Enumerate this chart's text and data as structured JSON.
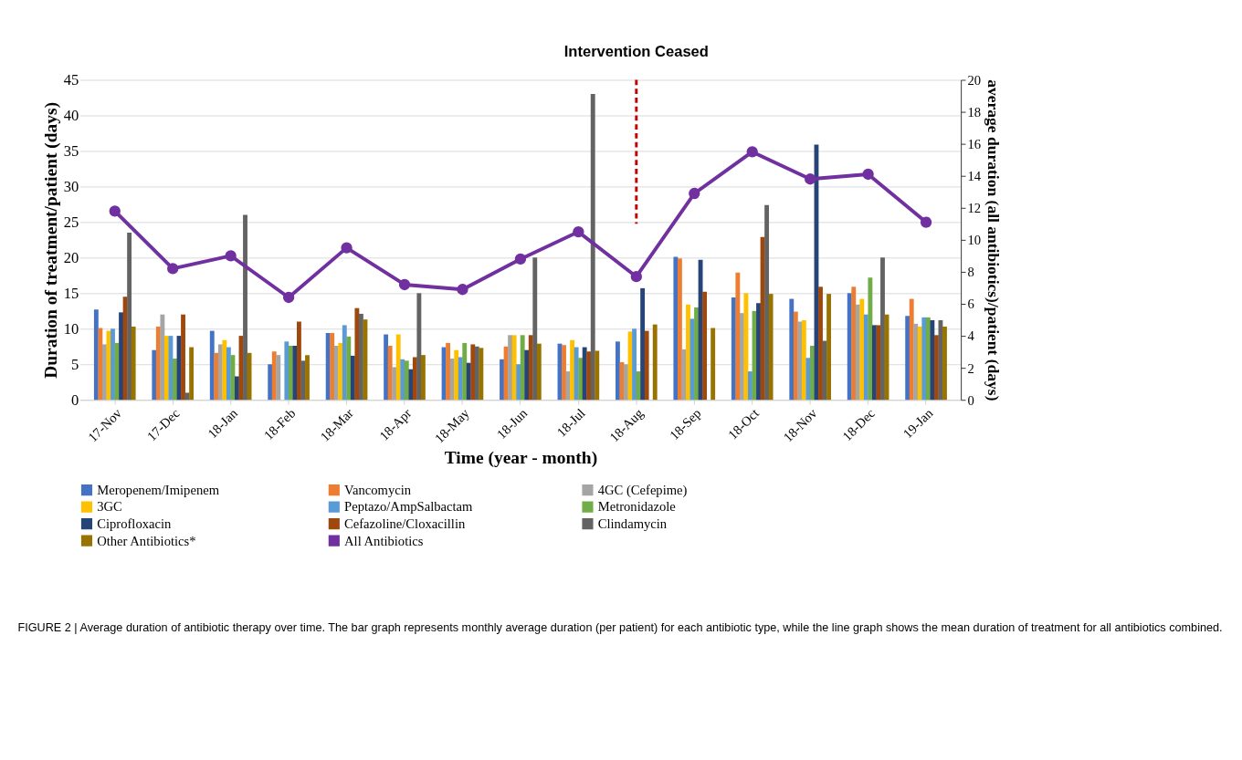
{
  "chart_data": {
    "type": "bar",
    "xlabel": "Time (year - month)",
    "ylabel": "Duration of treatment/patient (days)",
    "y2label": "average duration (all antibiotics)/patient (days)",
    "categories": [
      "17-Nov",
      "17-Dec",
      "18-Jan",
      "18-Feb",
      "18-Mar",
      "18-Apr",
      "18-May",
      "18-Jun",
      "18-Jul",
      "18-Aug",
      "18-Sep",
      "18-Oct",
      "18-Nov",
      "18-Dec",
      "19-Jan"
    ],
    "series": [
      {
        "name": "Meropenem/Imipenem",
        "color": "#4472c4",
        "values": [
          12.7,
          7,
          9.7,
          5,
          9.4,
          9.2,
          7.4,
          5.7,
          7.9,
          8.2,
          20.1,
          14.4,
          14.2,
          15,
          11.8
        ]
      },
      {
        "name": "Vancomycin",
        "color": "#ed7d31",
        "values": [
          10.1,
          10.3,
          6.6,
          6.8,
          9.4,
          7.6,
          8,
          7.5,
          7.7,
          5.3,
          19.9,
          17.9,
          12.4,
          15.9,
          14.2
        ]
      },
      {
        "name": "4GC (Cefepime)",
        "color": "#a5a5a5",
        "values": [
          7.8,
          12,
          7.8,
          6.3,
          7.6,
          4.6,
          5.8,
          9.1,
          4,
          5,
          7.1,
          12.2,
          11,
          13.4,
          10.7
        ]
      },
      {
        "name": "3GC",
        "color": "#ffc000",
        "values": [
          9.7,
          9,
          8.4,
          null,
          8,
          9.2,
          7,
          9.1,
          8.4,
          9.6,
          13.4,
          15,
          11.2,
          14.2,
          10.3
        ]
      },
      {
        "name": "Peptazo/AmpSalbactam",
        "color": "#5b9bd5",
        "values": [
          10,
          9,
          7.4,
          8.2,
          10.5,
          5.7,
          6,
          5,
          7.4,
          10,
          11.4,
          4,
          5.9,
          12,
          11.6
        ]
      },
      {
        "name": "Metronidazole",
        "color": "#70ad47",
        "values": [
          8,
          5.8,
          6.3,
          7.6,
          8.9,
          5.5,
          8,
          9.1,
          5.9,
          4,
          13,
          12.5,
          7.6,
          17.2,
          11.6
        ]
      },
      {
        "name": "Ciprofloxacin",
        "color": "#264478",
        "values": [
          12.3,
          9,
          3.3,
          7.6,
          6.2,
          4.3,
          5.2,
          7,
          7.4,
          15.7,
          19.7,
          13.6,
          35.9,
          10.5,
          11.2
        ]
      },
      {
        "name": "Cefazoline/Cloxacillin",
        "color": "#9e480e",
        "values": [
          14.5,
          12,
          9,
          11,
          12.9,
          6,
          7.8,
          9.1,
          6.8,
          9.7,
          15.2,
          22.9,
          15.9,
          10.5,
          9.1
        ]
      },
      {
        "name": "Clindamycin",
        "color": "#636363",
        "values": [
          23.5,
          1,
          26,
          5.5,
          12.1,
          15,
          7.5,
          20,
          43,
          null,
          null,
          27.4,
          8.3,
          20,
          11.2
        ]
      },
      {
        "name": "Other Antibiotics*",
        "color": "#997300",
        "values": [
          10.3,
          7.4,
          6.6,
          6.3,
          11.3,
          6.3,
          7.3,
          7.9,
          6.9,
          10.6,
          10.1,
          14.9,
          14.9,
          12,
          10.3
        ]
      },
      {
        "name": "All Antibiotics",
        "type": "line",
        "axis": "y2",
        "color": "#7030a0",
        "values": [
          11.8,
          8.2,
          9.0,
          6.4,
          9.5,
          7.2,
          6.9,
          8.8,
          10.5,
          7.7,
          12.9,
          15.5,
          13.8,
          14.1,
          11.1
        ]
      }
    ],
    "ylim": [
      0,
      45
    ],
    "yticks": [
      0,
      5,
      10,
      15,
      20,
      25,
      30,
      35,
      40,
      45
    ],
    "y2lim": [
      0,
      20
    ],
    "y2ticks": [
      0,
      2,
      4,
      6,
      8,
      10,
      12,
      14,
      16,
      18,
      20
    ],
    "grid": "y",
    "legend": "bottom",
    "marker": "circle",
    "ref_lines": [
      {
        "axis": "x",
        "value": "18-Aug",
        "label": "Intervention Ceased",
        "color": "#c00000",
        "line_style": "dashed"
      }
    ],
    "annotations": [
      "FIGURE 2 | Average duration of antibiotic therapy over time. The bar graph represents monthly average duration (per patient) for each antibiotic type, while the line graph shows the mean duration of treatment for all antibiotics combined."
    ]
  }
}
